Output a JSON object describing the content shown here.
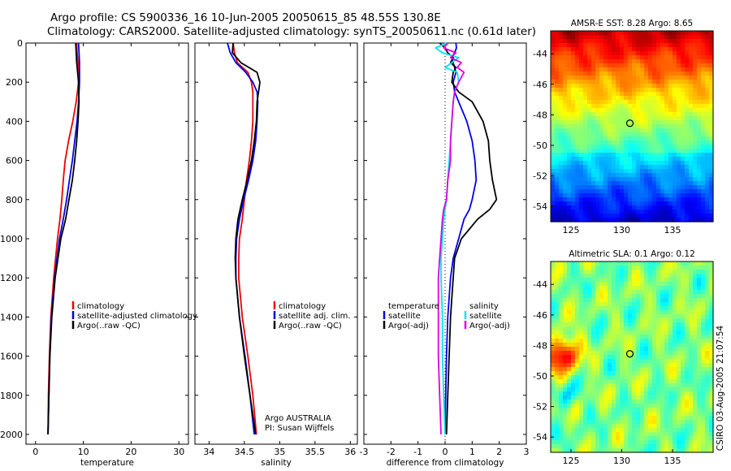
{
  "title": {
    "line1": "Argo profile: CS 5900336_16 10-Jun-2005 20050615_85 48.55S 130.8E",
    "line2": "Climatology: CARS2000. Satellite-adjusted climatology: synTS_20050611.nc (0.61d later)"
  },
  "colors": {
    "climatology": "#ee0000",
    "satellite": "#0000ee",
    "argo": "#000000",
    "salinity": "#00e5ee",
    "salinity_argo": "#e000e0"
  },
  "chart_data": [
    {
      "type": "line",
      "xlabel": "temperature",
      "xlim": [
        -2,
        32
      ],
      "ylim": [
        0,
        2050
      ],
      "y_reversed": true,
      "xticks": [
        0,
        10,
        20,
        30
      ],
      "yticks": [
        0,
        200,
        400,
        600,
        800,
        1000,
        1200,
        1400,
        1600,
        1800,
        2000
      ],
      "depth": [
        0,
        50,
        100,
        200,
        300,
        400,
        500,
        600,
        700,
        800,
        900,
        1000,
        1200,
        1400,
        1600,
        1800,
        2000
      ],
      "series": [
        {
          "name": "climatology",
          "color": "#ee0000",
          "x": [
            8.6,
            8.7,
            8.9,
            9.0,
            8.5,
            7.8,
            6.9,
            6.2,
            5.8,
            5.5,
            5.1,
            4.6,
            3.8,
            3.2,
            2.9,
            2.7,
            2.6
          ]
        },
        {
          "name": "satellite-adjusted climatology",
          "color": "#0000ee",
          "x": [
            9.0,
            9.1,
            9.2,
            9.2,
            9.0,
            8.7,
            8.2,
            7.7,
            7.1,
            6.5,
            5.8,
            5.0,
            4.0,
            3.3,
            3.0,
            2.8,
            2.6
          ]
        },
        {
          "name": "Argo(..raw -QC)",
          "color": "#000000",
          "x": [
            8.4,
            8.5,
            8.6,
            9.0,
            9.1,
            8.9,
            8.6,
            8.2,
            7.7,
            7.0,
            6.3,
            5.3,
            4.1,
            3.4,
            3.0,
            2.8,
            2.6
          ]
        }
      ]
    },
    {
      "type": "line",
      "xlabel": "salinity",
      "xlim": [
        33.8,
        36.1
      ],
      "ylim": [
        0,
        2050
      ],
      "y_reversed": true,
      "xticks": [
        34,
        34.5,
        35,
        35.5,
        36
      ],
      "xticklabels": [
        "34",
        "34.5",
        "35",
        "35.5",
        "36"
      ],
      "depth": [
        0,
        50,
        100,
        150,
        200,
        250,
        300,
        400,
        500,
        600,
        700,
        800,
        900,
        1000,
        1100,
        1200,
        1400,
        1600,
        1800,
        2000
      ],
      "annotation": [
        "Argo AUSTRALIA",
        "PI: Susan Wijffels"
      ],
      "series": [
        {
          "name": "climatology",
          "color": "#ee0000",
          "x": [
            34.34,
            34.36,
            34.4,
            34.55,
            34.6,
            34.62,
            34.62,
            34.62,
            34.6,
            34.57,
            34.53,
            34.5,
            34.47,
            34.43,
            34.42,
            34.42,
            34.47,
            34.55,
            34.62,
            34.67
          ]
        },
        {
          "name": "satellite adj. clim.",
          "color": "#0000ee",
          "x": [
            34.26,
            34.3,
            34.38,
            34.52,
            34.62,
            34.68,
            34.69,
            34.68,
            34.66,
            34.62,
            34.56,
            34.49,
            34.43,
            34.39,
            34.38,
            34.38,
            34.43,
            34.51,
            34.58,
            34.64
          ]
        },
        {
          "name": "Argo(..raw -QC)",
          "color": "#000000",
          "x": [
            34.34,
            34.33,
            34.45,
            34.68,
            34.72,
            34.7,
            34.68,
            34.67,
            34.64,
            34.6,
            34.54,
            34.47,
            34.41,
            34.38,
            34.37,
            34.38,
            34.43,
            34.5,
            34.58,
            34.66
          ]
        }
      ]
    },
    {
      "type": "line",
      "xlabel": "difference from climatology",
      "xlim": [
        -3,
        3
      ],
      "ylim": [
        0,
        2050
      ],
      "y_reversed": true,
      "xticks": [
        -3,
        -2,
        -1,
        0,
        1,
        2,
        3
      ],
      "xticklabels": [
        "-3",
        "-2",
        "-1",
        "0",
        "1",
        "2",
        "3"
      ],
      "depth": [
        0,
        25,
        50,
        75,
        100,
        125,
        150,
        200,
        250,
        300,
        400,
        500,
        600,
        700,
        800,
        850,
        900,
        1000,
        1100,
        1200,
        1400,
        1600,
        1800,
        2000
      ],
      "legend_left_heading": "temperature",
      "legend_right_heading": "salinity",
      "series": [
        {
          "name": "satellite",
          "group": "temperature",
          "color": "#0000ee",
          "x": [
            0.4,
            0.42,
            0.35,
            0.25,
            0.3,
            0.35,
            0.4,
            0.3,
            0.35,
            0.5,
            0.8,
            1.0,
            1.1,
            1.15,
            1.0,
            0.9,
            0.7,
            0.5,
            0.3,
            0.2,
            0.1,
            0.05,
            0.02,
            0.0
          ]
        },
        {
          "name": "Argo(-adj)",
          "group": "temperature",
          "color": "#000000",
          "x": [
            -0.2,
            0.0,
            0.1,
            0.3,
            0.2,
            0.4,
            0.3,
            0.25,
            0.5,
            1.0,
            1.4,
            1.6,
            1.65,
            1.75,
            1.9,
            1.65,
            1.2,
            0.6,
            0.35,
            0.3,
            0.2,
            0.15,
            0.1,
            0.05
          ]
        },
        {
          "name": "satellite",
          "group": "salinity",
          "color": "#00e5ee",
          "x": [
            0.05,
            -0.35,
            -0.1,
            0.5,
            0.25,
            0.0,
            0.45,
            0.5,
            0.35,
            0.3,
            0.25,
            0.2,
            0.15,
            0.1,
            0.05,
            0.0,
            -0.05,
            -0.1,
            -0.15,
            -0.15,
            -0.1,
            -0.1,
            -0.05,
            0.0
          ]
        },
        {
          "name": "Argo(-adj)",
          "group": "salinity",
          "color": "#e000e0",
          "x": [
            0.1,
            -0.05,
            0.4,
            0.2,
            0.6,
            0.45,
            0.7,
            0.5,
            0.35,
            0.3,
            0.25,
            0.2,
            0.2,
            0.1,
            0.05,
            -0.05,
            -0.1,
            -0.15,
            -0.2,
            -0.25,
            -0.25,
            -0.25,
            -0.2,
            -0.15
          ]
        }
      ]
    },
    {
      "type": "heatmap",
      "title": "AMSR-E SST: 8.28 Argo: 8.65",
      "xlim": [
        123,
        139
      ],
      "ylim": [
        -55,
        -42.5
      ],
      "xticks": [
        125,
        130,
        135
      ],
      "yticks": [
        -44,
        -46,
        -48,
        -50,
        -52,
        -54
      ],
      "marker": {
        "lon": 130.8,
        "lat": -48.55
      },
      "palette": "jet",
      "field": "sst"
    },
    {
      "type": "heatmap",
      "title": "Altimetric SLA: 0.1 Argo: 0.12",
      "xlim": [
        123,
        139
      ],
      "ylim": [
        -55,
        -42.5
      ],
      "xticks": [
        125,
        130,
        135
      ],
      "yticks": [
        -44,
        -46,
        -48,
        -50,
        -52,
        -54
      ],
      "marker": {
        "lon": 130.8,
        "lat": -48.55
      },
      "palette": "jet",
      "field": "sla"
    }
  ],
  "legend": {
    "temperature": [
      "climatology",
      "satellite-adjusted climatology",
      "Argo(..raw -QC)"
    ],
    "salinity": [
      "climatology",
      "satellite adj. clim.",
      "Argo(..raw -QC)"
    ],
    "difference_left": [
      "temperature",
      "satellite",
      "Argo(-adj)"
    ],
    "difference_right": [
      "salinity",
      "satellite",
      "Argo(-adj)"
    ]
  },
  "side_text": "CSIRO 03-Aug-2005 21:07:54"
}
